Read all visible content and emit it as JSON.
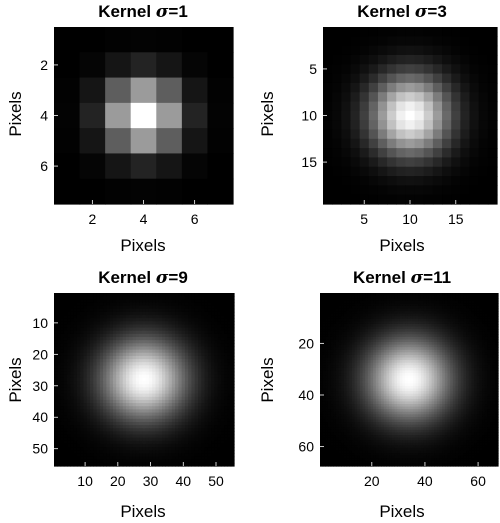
{
  "chart_data": [
    {
      "type": "heatmap",
      "title_prefix": "Kernel ",
      "title_symbol": "σ",
      "title_suffix": "=1",
      "sigma": 1,
      "size": 7,
      "xlabel": "Pixels",
      "ylabel": "Pixels",
      "xticks": [
        2,
        4,
        6
      ],
      "yticks": [
        2,
        4,
        6
      ],
      "colormap": "gray"
    },
    {
      "type": "heatmap",
      "title_prefix": "Kernel ",
      "title_symbol": "σ",
      "title_suffix": "=3",
      "sigma": 3,
      "size": 19,
      "xlabel": "Pixels",
      "ylabel": "Pixels",
      "xticks": [
        5,
        10,
        15
      ],
      "yticks": [
        5,
        10,
        15
      ],
      "colormap": "gray"
    },
    {
      "type": "heatmap",
      "title_prefix": "Kernel ",
      "title_symbol": "σ",
      "title_suffix": "=9",
      "sigma": 9,
      "size": 55,
      "xlabel": "Pixels",
      "ylabel": "Pixels",
      "xticks": [
        10,
        20,
        30,
        40,
        50
      ],
      "yticks": [
        10,
        20,
        30,
        40,
        50
      ],
      "colormap": "gray"
    },
    {
      "type": "heatmap",
      "title_prefix": "Kernel ",
      "title_symbol": "σ",
      "title_suffix": "=11",
      "sigma": 11,
      "size": 67,
      "xlabel": "Pixels",
      "ylabel": "Pixels",
      "xticks": [
        20,
        40,
        60
      ],
      "yticks": [
        20,
        40,
        60
      ],
      "colormap": "gray"
    }
  ]
}
